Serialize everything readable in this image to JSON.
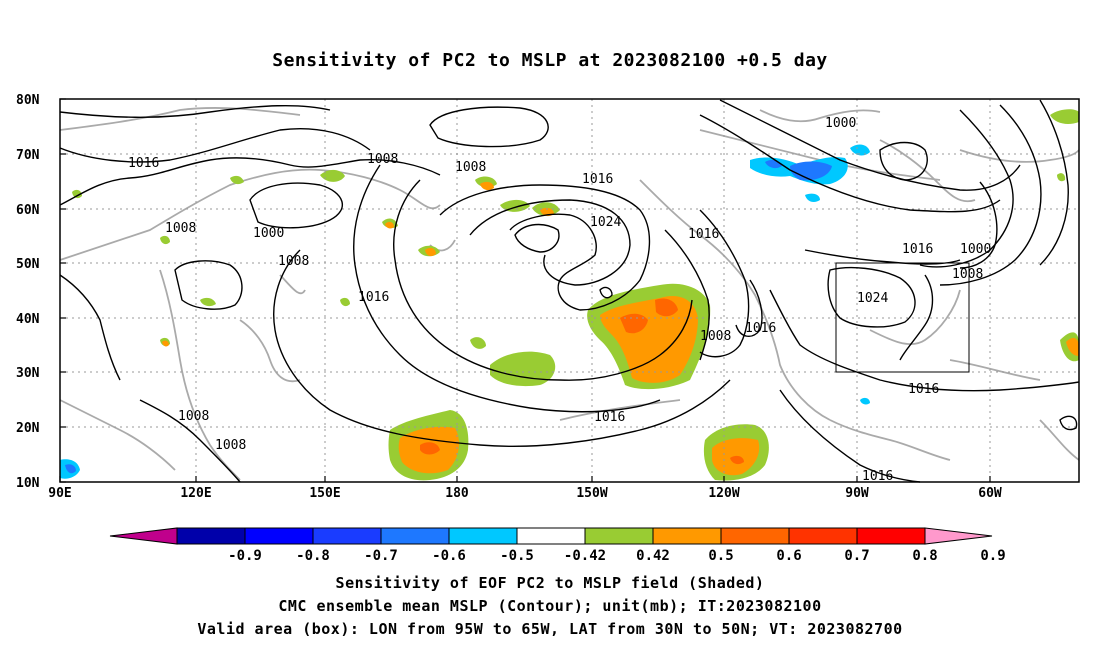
{
  "title": "Sensitivity of PC2 to MSLP at 2023082100 +0.5 day",
  "lat_labels": [
    "80N",
    "70N",
    "60N",
    "50N",
    "40N",
    "30N",
    "20N",
    "10N"
  ],
  "lon_labels": [
    "90E",
    "120E",
    "150E",
    "180",
    "150W",
    "120W",
    "90W",
    "60W"
  ],
  "contour_labels": [
    "1016",
    "1008",
    "1008",
    "1016",
    "1024",
    "1016",
    "1000",
    "1008",
    "1008",
    "1000",
    "1016",
    "1016",
    "1000",
    "1008",
    "1024",
    "1016",
    "1016",
    "1008",
    "1016",
    "1008",
    "1008",
    "1016",
    "1008"
  ],
  "valid_box": {
    "lon_range": "95W to 65W",
    "lat_range": "30N to 50N"
  },
  "colorbar": {
    "ticks": [
      "-0.9",
      "-0.8",
      "-0.7",
      "-0.6",
      "-0.5",
      "-0.42",
      "0.42",
      "0.5",
      "0.6",
      "0.7",
      "0.8",
      "0.9"
    ],
    "colors": [
      "#c0008c",
      "#0000aa",
      "#0000ff",
      "#1a3cff",
      "#1e78ff",
      "#00c8ff",
      "#ffffff",
      "#99cc33",
      "#ff9900",
      "#ff6600",
      "#ff3300",
      "#ff0000",
      "#ff99cc"
    ]
  },
  "caption": {
    "line1": "Sensitivity of EOF PC2 to MSLP field (Shaded)",
    "line2": "CMC ensemble mean MSLP (Contour); unit(mb); IT:2023082100",
    "line3": "Valid area (box): LON from 95W to 65W, LAT from 30N to 50N; VT: 2023082700"
  }
}
